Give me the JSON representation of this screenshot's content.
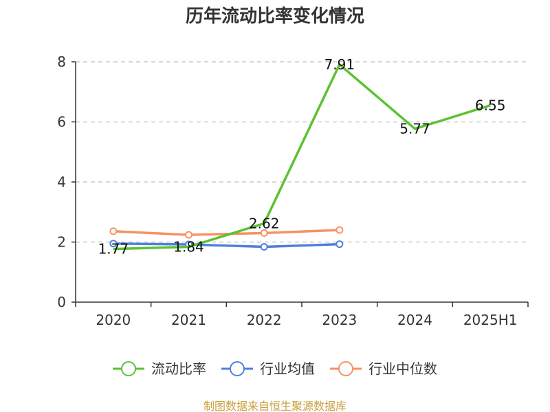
{
  "chart_data": {
    "type": "line",
    "title": "历年流动比率变化情况",
    "categories": [
      "2020",
      "2021",
      "2022",
      "2023",
      "2024",
      "2025H1"
    ],
    "ylim": [
      0,
      8
    ],
    "yticks": [
      "0",
      "2",
      "4",
      "6",
      "8"
    ],
    "grid": true,
    "legend_position": "bottom",
    "series": [
      {
        "name": "流动比率",
        "color": "#5bc232",
        "values": [
          1.77,
          1.84,
          2.62,
          7.91,
          5.77,
          6.55
        ],
        "data_labels": [
          "1.77",
          "1.84",
          "2.62",
          "7.91",
          "5.77",
          "6.55"
        ]
      },
      {
        "name": "行业均值",
        "color": "#4f7fdc",
        "values": [
          1.95,
          1.92,
          1.84,
          1.93,
          null,
          null
        ]
      },
      {
        "name": "行业中位数",
        "color": "#f79163",
        "values": [
          2.36,
          2.24,
          2.3,
          2.4,
          null,
          null
        ]
      }
    ],
    "source": "制图数据来自恒生聚源数据库"
  }
}
